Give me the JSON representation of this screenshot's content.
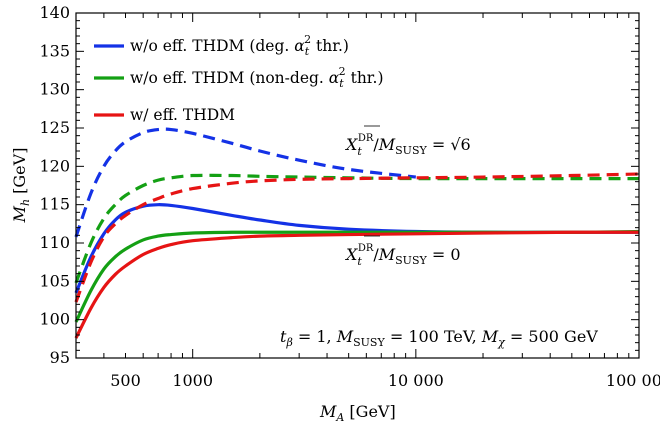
{
  "chart_data": {
    "type": "line",
    "xlabel": "M_A [GeV]",
    "ylabel": "M_h [GeV]",
    "xscale": "log",
    "xlim": [
      300,
      100000
    ],
    "ylim": [
      95,
      140
    ],
    "grid": false,
    "legend_position": "top-left",
    "x_tick_labels": [
      {
        "value": 500,
        "label": "500"
      },
      {
        "value": 1000,
        "label": "1000"
      },
      {
        "value": 10000,
        "label": "10 000"
      },
      {
        "value": 100000,
        "label": "100 000"
      }
    ],
    "y_ticks": [
      95,
      100,
      105,
      110,
      115,
      120,
      125,
      130,
      135,
      140
    ],
    "legend": [
      {
        "label": "w/o eff. THDM (deg. αₜ² thr.)",
        "color": "#1432e6"
      },
      {
        "label": "w/o eff. THDM (non-deg. αₜ² thr.)",
        "color": "#14a014"
      },
      {
        "label": "w/ eff. THDM",
        "color": "#e61414"
      }
    ],
    "annotations": {
      "upper": "Xₜ^DR/M_SUSY = √6",
      "lower": "Xₜ^DR/M_SUSY = 0",
      "params": "t_β = 1, M_SUSY = 100 TeV, M_χ = 500 GeV"
    },
    "series": [
      {
        "color": "#1432e6",
        "style": "solid",
        "x": [
          300,
          350,
          400,
          450,
          500,
          600,
          700,
          800,
          1000,
          1500,
          2000,
          3000,
          5000,
          10000,
          20000,
          50000,
          100000
        ],
        "y": [
          103.5,
          108.2,
          111.2,
          113.0,
          114.0,
          114.8,
          115.0,
          114.9,
          114.5,
          113.6,
          113.0,
          112.3,
          111.8,
          111.5,
          111.4,
          111.4,
          111.4
        ]
      },
      {
        "color": "#14a014",
        "style": "solid",
        "x": [
          300,
          350,
          400,
          450,
          500,
          600,
          700,
          800,
          1000,
          1500,
          2000,
          3000,
          5000,
          10000,
          20000,
          50000,
          100000
        ],
        "y": [
          99.7,
          103.8,
          106.6,
          108.2,
          109.2,
          110.4,
          110.9,
          111.1,
          111.3,
          111.4,
          111.4,
          111.4,
          111.4,
          111.4,
          111.4,
          111.4,
          111.5
        ]
      },
      {
        "color": "#e61414",
        "style": "solid",
        "x": [
          300,
          350,
          400,
          450,
          500,
          600,
          700,
          800,
          1000,
          1500,
          2000,
          3000,
          5000,
          10000,
          20000,
          50000,
          100000
        ],
        "y": [
          97.6,
          101.5,
          104.2,
          105.9,
          107.0,
          108.5,
          109.3,
          109.8,
          110.3,
          110.7,
          110.9,
          111.0,
          111.1,
          111.2,
          111.3,
          111.4,
          111.4
        ]
      },
      {
        "color": "#1432e6",
        "style": "dashed",
        "x": [
          300,
          350,
          400,
          450,
          500,
          600,
          700,
          800,
          1000,
          1500,
          2000,
          3000,
          5000,
          10000
        ],
        "y": [
          110.8,
          116.5,
          120.0,
          122.0,
          123.2,
          124.4,
          124.8,
          124.8,
          124.3,
          123.0,
          122.0,
          120.8,
          119.6,
          118.6
        ]
      },
      {
        "color": "#14a014",
        "style": "dashed",
        "x": [
          300,
          350,
          400,
          450,
          500,
          600,
          700,
          800,
          1000,
          1500,
          2000,
          3000,
          5000,
          10000,
          20000,
          50000,
          100000
        ],
        "y": [
          104.8,
          110.0,
          113.2,
          115.0,
          116.2,
          117.5,
          118.2,
          118.5,
          118.8,
          118.8,
          118.7,
          118.6,
          118.5,
          118.4,
          118.4,
          118.4,
          118.4
        ]
      },
      {
        "color": "#e61414",
        "style": "dashed",
        "x": [
          300,
          350,
          400,
          450,
          500,
          600,
          700,
          800,
          1000,
          1500,
          2000,
          3000,
          5000,
          10000,
          20000,
          50000,
          100000
        ],
        "y": [
          102.3,
          107.5,
          110.8,
          112.5,
          113.6,
          115.0,
          115.8,
          116.4,
          117.1,
          117.8,
          118.1,
          118.3,
          118.4,
          118.5,
          118.6,
          118.8,
          119.0
        ]
      }
    ]
  }
}
